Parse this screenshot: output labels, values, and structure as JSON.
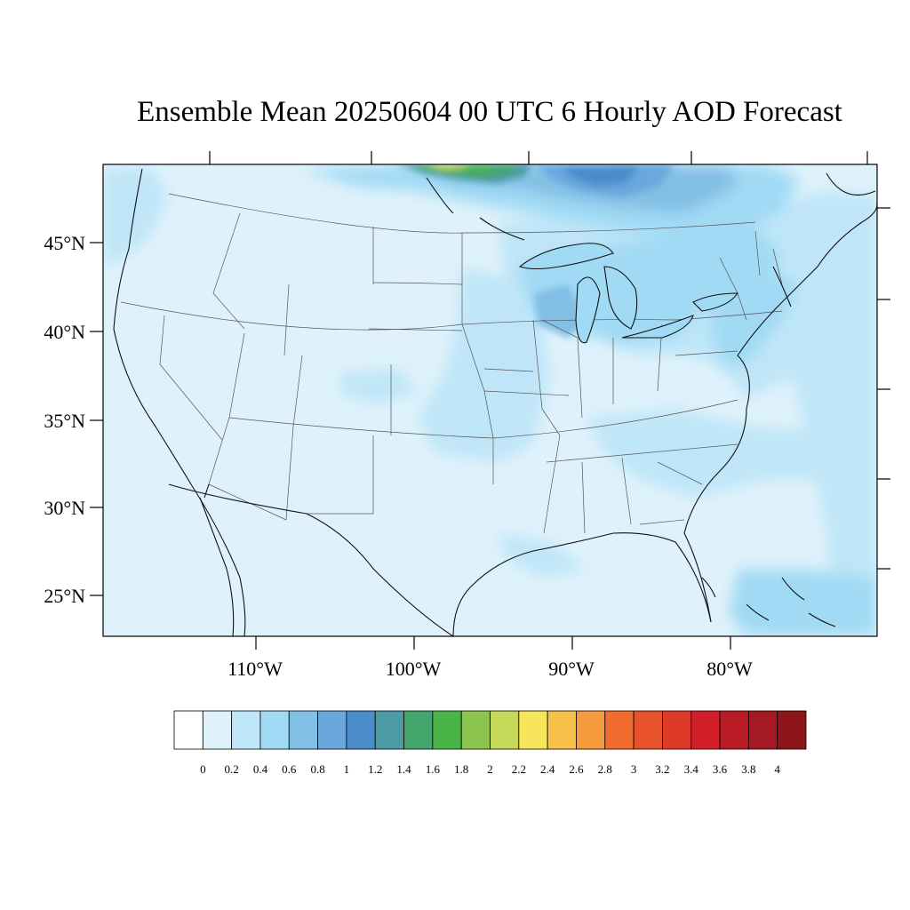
{
  "title": "Ensemble Mean 20250604 00 UTC 6 Hourly AOD Forecast",
  "map": {
    "projection": "lambert-conformal",
    "region": "CONUS",
    "latitude_labels": [
      "45°N",
      "40°N",
      "35°N",
      "30°N",
      "25°N"
    ],
    "longitude_labels": [
      "110°W",
      "100°W",
      "90°W",
      "80°W"
    ],
    "features": [
      "plume-hudson-bay-high-aod",
      "plume-great-lakes-northeast",
      "plume-central-plains",
      "plume-atlantic-offshore",
      "plume-bahamas",
      "background-clean-west"
    ]
  },
  "colorbar": {
    "labels": [
      "0",
      "0.2",
      "0.4",
      "0.6",
      "0.8",
      "1",
      "1.2",
      "1.4",
      "1.6",
      "1.8",
      "2",
      "2.2",
      "2.4",
      "2.6",
      "2.8",
      "3",
      "3.2",
      "3.4",
      "3.6",
      "3.8",
      "4"
    ],
    "colors": [
      "#ffffff",
      "#dff2fb",
      "#bfe6f8",
      "#a1daf4",
      "#82bfe5",
      "#69a7dd",
      "#4b8ccb",
      "#4c9aa3",
      "#44a66c",
      "#49b549",
      "#8bc44f",
      "#c6d858",
      "#f7e65b",
      "#f6c049",
      "#f59b3e",
      "#f26c2f",
      "#e8522c",
      "#de3a2a",
      "#d21f29",
      "#b91c25",
      "#a51a22",
      "#8e1519"
    ]
  }
}
